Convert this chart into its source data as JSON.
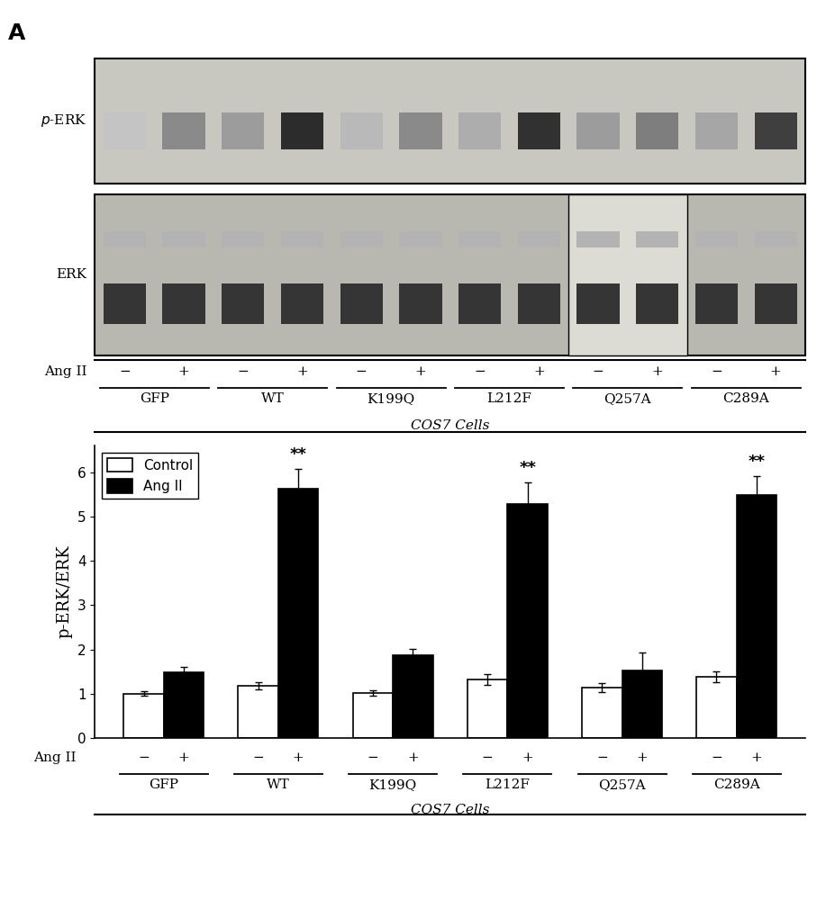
{
  "panel_label": "A",
  "groups": [
    "GFP",
    "WT",
    "K199Q",
    "L212F",
    "Q257A",
    "C289A"
  ],
  "ylabel": "p-ERK/ERK",
  "angII_label": "Ang II",
  "control_values": [
    1.0,
    1.18,
    1.01,
    1.32,
    1.13,
    1.38
  ],
  "angII_values": [
    1.49,
    5.62,
    1.87,
    5.28,
    1.52,
    5.48
  ],
  "control_errors": [
    0.05,
    0.08,
    0.06,
    0.12,
    0.1,
    0.12
  ],
  "angII_errors": [
    0.12,
    0.45,
    0.15,
    0.48,
    0.4,
    0.42
  ],
  "significant": [
    false,
    true,
    false,
    true,
    false,
    true
  ],
  "ylim": [
    0,
    6.6
  ],
  "yticks": [
    0,
    1,
    2,
    3,
    4,
    5,
    6
  ],
  "legend_labels": [
    "Control",
    "Ang II"
  ],
  "bar_width": 0.35,
  "white_bar_color": "#ffffff",
  "black_bar_color": "#000000",
  "bar_edge_color": "#000000",
  "sig_marker": "**",
  "background_color": "#ffffff",
  "perk_bg": "#c8c8c0",
  "erk_bg": "#b8b8b0",
  "perk_band_intensities": [
    0.25,
    0.5,
    0.42,
    0.9,
    0.3,
    0.5,
    0.35,
    0.88,
    0.42,
    0.55,
    0.38,
    0.82
  ],
  "erk_band_intensities": [
    0.88,
    0.88,
    0.88,
    0.88,
    0.88,
    0.88,
    0.88,
    0.88,
    0.88,
    0.88,
    0.88,
    0.88
  ],
  "erk_faint_intensities": [
    0.35,
    0.35,
    0.35,
    0.35,
    0.35,
    0.35,
    0.35,
    0.35,
    0.35,
    0.35,
    0.35,
    0.35
  ],
  "cos7_label": "COS7 Cells",
  "cos7_label_bottom": "COS7 Cells"
}
